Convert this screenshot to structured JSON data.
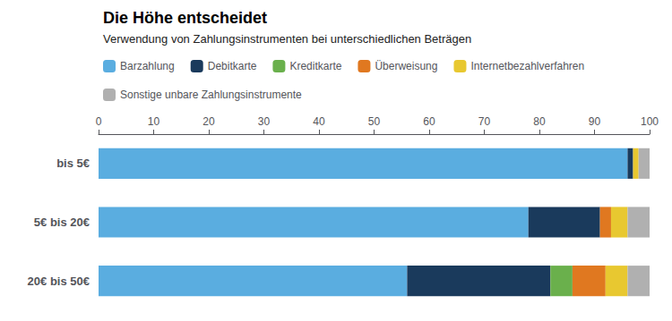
{
  "chart_data": {
    "type": "bar",
    "orientation": "horizontal",
    "stacked": true,
    "title": "Die Höhe entscheidet",
    "subtitle": "Verwendung von Zahlungsinstrumenten bei unterschiedlichen Beträgen",
    "categories": [
      "bis 5€",
      "5€ bis 20€",
      "20€ bis 50€"
    ],
    "series": [
      {
        "name": "Barzahlung",
        "color": "#5aade0",
        "values": [
          96,
          78,
          56
        ]
      },
      {
        "name": "Debitkarte",
        "color": "#1a3a5c",
        "values": [
          1,
          13,
          26
        ]
      },
      {
        "name": "Kreditkarte",
        "color": "#6ab04c",
        "values": [
          0,
          0,
          4
        ]
      },
      {
        "name": "Überweisung",
        "color": "#e07820",
        "values": [
          0,
          2,
          6
        ]
      },
      {
        "name": "Internetbezahlverfahren",
        "color": "#e8c830",
        "values": [
          1,
          3,
          4
        ]
      },
      {
        "name": "Sonstige unbare Zahlungsinstrumente",
        "color": "#b0b0b0",
        "values": [
          2,
          4,
          4
        ]
      }
    ],
    "xlim": [
      0,
      100
    ],
    "xticks": [
      0,
      10,
      20,
      30,
      40,
      50,
      60,
      70,
      80,
      90,
      100
    ],
    "grid": false,
    "legend": "top"
  }
}
